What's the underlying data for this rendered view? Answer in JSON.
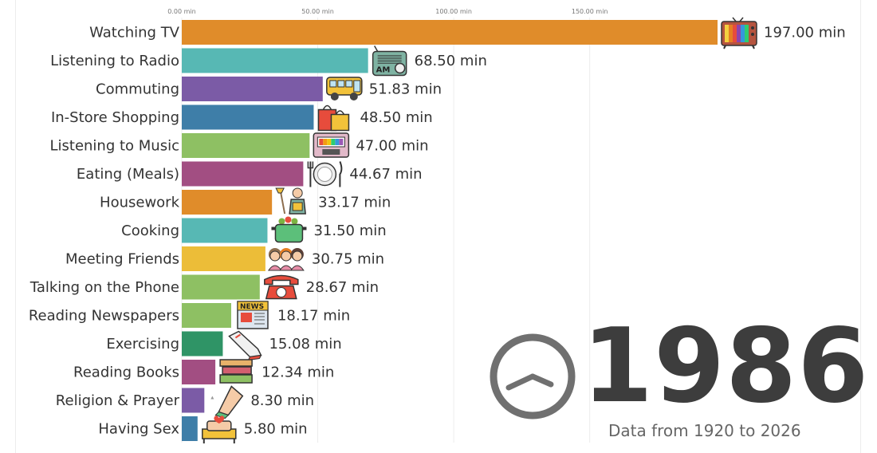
{
  "chart_data": {
    "type": "bar",
    "orientation": "horizontal",
    "x_ticks": [
      "0.00 min",
      "50.00 min",
      "100.00 min",
      "150.00 min"
    ],
    "x_tick_values": [
      0,
      50,
      100,
      150
    ],
    "xlim": [
      0,
      200
    ],
    "grid": "vertical",
    "categories": [
      "Watching TV",
      "Listening to Radio",
      "Commuting",
      "In-Store Shopping",
      "Listening to Music",
      "Eating (Meals)",
      "Housework",
      "Cooking",
      "Meeting Friends",
      "Talking on the Phone",
      "Reading Newspapers",
      "Exercising",
      "Reading Books",
      "Religion & Prayer",
      "Having Sex"
    ],
    "values": [
      197.0,
      68.5,
      51.83,
      48.5,
      47.0,
      44.67,
      33.17,
      31.5,
      30.75,
      28.67,
      18.17,
      15.08,
      12.34,
      8.3,
      5.8
    ],
    "value_labels": [
      "197.00 min",
      "68.50 min",
      "51.83 min",
      "48.50 min",
      "47.00 min",
      "44.67 min",
      "33.17 min",
      "31.50 min",
      "30.75 min",
      "28.67 min",
      "18.17 min",
      "15.08 min",
      "12.34 min",
      "8.30 min",
      "5.80 min"
    ],
    "colors": [
      "#e08c2a",
      "#57b8b4",
      "#7b5ba6",
      "#3e7ea8",
      "#8ec063",
      "#a24e82",
      "#e08c2a",
      "#57b8b4",
      "#ecbd38",
      "#8ec063",
      "#8ec063",
      "#2f9466",
      "#a24e82",
      "#7b5ba6",
      "#3e7ea8"
    ],
    "icons": [
      "tv-icon",
      "radio-icon",
      "bus-icon",
      "shopping-bags-icon",
      "cassette-icon",
      "plate-cutlery-icon",
      "cleaning-person-icon",
      "cooking-pot-icon",
      "friends-icon",
      "telephone-icon",
      "newspaper-icon",
      "sneaker-icon",
      "books-icon",
      "praying-hands-icon",
      "bed-icon"
    ]
  },
  "year": "1986",
  "caption": "Data from 1920 to 2026",
  "radio_icon_text": "AM",
  "newspaper_icon_text": "NEWS"
}
